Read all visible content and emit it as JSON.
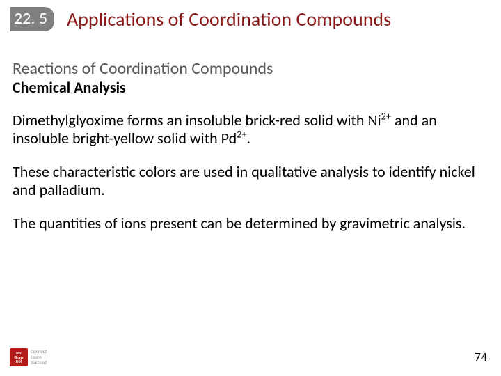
{
  "header": {
    "section_number": "22. 5",
    "title": "Applications of Coordination Compounds"
  },
  "body": {
    "subheading_grey": "Reactions of Coordination Compounds",
    "subheading_bold": "Chemical Analysis",
    "para1_a": "Dimethylglyoxime forms an insoluble brick-red solid with Ni",
    "para1_sup1": "2+",
    "para1_b": " and an insoluble bright-yellow solid with Pd",
    "para1_sup2": "2+",
    "para1_c": ".",
    "para2": "These characteristic colors are used in qualitative analysis to identify nickel and palladium.",
    "para3": "The quantities of ions present can be determined by gravimetric analysis."
  },
  "footer": {
    "page_number": "74",
    "logo_top": "Mc",
    "logo_mid": "Graw",
    "logo_bot": "Hill",
    "tag1": "Connect",
    "tag2": "Learn",
    "tag3": "Succeed"
  },
  "colors": {
    "section_bg": "#808080",
    "title_color": "#8b1a1a",
    "subhead_grey": "#595959",
    "logo_bg": "#b31b1b"
  }
}
